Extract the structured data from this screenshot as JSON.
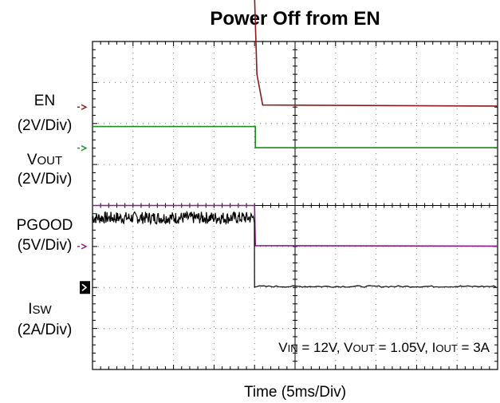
{
  "chart_data": {
    "type": "line",
    "title": "Power Off from EN",
    "xlabel": "Time (5ms/Div)",
    "x_div_ms": 5,
    "x_divisions": 10,
    "y_divisions": 8,
    "grid": true,
    "annotation": {
      "vin_prefix": "V",
      "vin_sub": "IN",
      "vin_val": " = 12V, ",
      "vout_prefix": "V",
      "vout_sub": "OUT",
      "vout_val": " = 1.05V, ",
      "iout_prefix": "I",
      "iout_sub": "OUT",
      "iout_val": " = 3A"
    },
    "channels": [
      {
        "label_name": "EN",
        "label_sub": "",
        "scale": "(2V/Div)",
        "color": "#8b1a1a",
        "marker_color": "#8b1a1a",
        "ref_div": 1.6,
        "points": [
          [
            0,
            5.4
          ],
          [
            20.0,
            5.4
          ],
          [
            20.3,
            1.6
          ],
          [
            21.0,
            0.1
          ],
          [
            50,
            0.05
          ]
        ]
      },
      {
        "label_name": "V",
        "label_sub": "OUT",
        "scale": "(2V/Div)",
        "color": "#1f8a1f",
        "marker_color": "#1f8a1f",
        "ref_div": 2.6,
        "points": [
          [
            0,
            1.05
          ],
          [
            20.1,
            1.05
          ],
          [
            20.1,
            0.02
          ],
          [
            50,
            0.02
          ]
        ]
      },
      {
        "label_name": "PGOOD",
        "label_sub": "",
        "scale": "(5V/Div)",
        "color": "#8b1a8b",
        "marker_color": "#8b1a8b",
        "ref_div": 5.0,
        "points": [
          [
            0,
            5.0
          ],
          [
            20.0,
            5.0
          ],
          [
            20.1,
            0.1
          ],
          [
            50,
            0.05
          ]
        ]
      },
      {
        "label_name": "I",
        "label_sub": "SW",
        "scale": "(2A/Div)",
        "color": "#000000",
        "marker_color": "#000000",
        "ref_div": 6.0,
        "noise_until_ms": 20.0,
        "noise_center_a": 3.4,
        "noise_amp_a": 0.3,
        "after_a": 0.05
      }
    ]
  }
}
